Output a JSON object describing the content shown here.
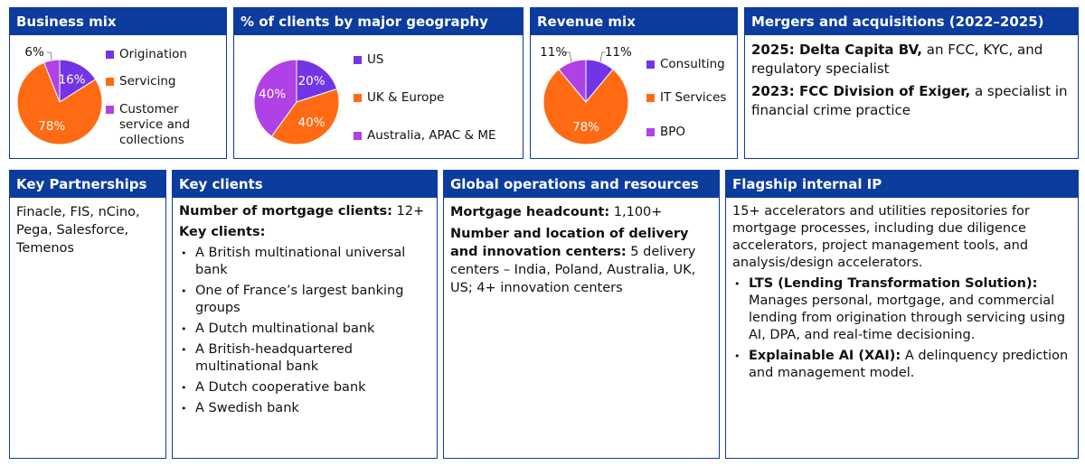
{
  "chart_data": [
    {
      "type": "pie",
      "title": "Business mix",
      "categories": [
        "Origination",
        "Servicing",
        "Customer service and collections"
      ],
      "values": [
        16,
        78,
        6
      ],
      "value_labels": [
        "16%",
        "78%",
        "6%"
      ],
      "colors": [
        "#7235e6",
        "#ff6a13",
        "#b041e6"
      ]
    },
    {
      "type": "pie",
      "title": "% of clients by major geography",
      "categories": [
        "US",
        "UK & Europe",
        "Australia, APAC & ME"
      ],
      "values": [
        20,
        40,
        40
      ],
      "value_labels": [
        "20%",
        "40%",
        "40%"
      ],
      "colors": [
        "#7235e6",
        "#ff6a13",
        "#b041e6"
      ]
    },
    {
      "type": "pie",
      "title": "Revenue mix",
      "categories": [
        "Consulting",
        "IT Services",
        "BPO"
      ],
      "values": [
        11,
        78,
        11
      ],
      "value_labels": [
        "11%",
        "78%",
        "11%"
      ],
      "colors": [
        "#7235e6",
        "#ff6a13",
        "#b041e6"
      ]
    }
  ],
  "mna": {
    "title": "Mergers and acquisitions (2022–2025)",
    "items": [
      {
        "bold": "2025: Delta Capita BV,",
        "text": "an FCC, KYC, and regulatory specialist"
      },
      {
        "bold": "2023: FCC Division of Exiger,",
        "text": "a specialist in financial crime practice"
      }
    ]
  },
  "partnerships": {
    "title": "Key Partnerships",
    "text": "Finacle, FIS, nCino, Pega, Salesforce, Temenos"
  },
  "clients": {
    "title": "Key clients",
    "count_label": "Number of mortgage clients:",
    "count": "12+",
    "list_label": "Key clients:",
    "list": [
      "A British multinational universal bank",
      "One of France’s largest banking groups",
      "A Dutch multinational bank",
      "A British-headquartered multinational bank",
      "A Dutch cooperative bank",
      "A Swedish bank"
    ]
  },
  "operations": {
    "title": "Global operations and resources",
    "headcount_label": "Mortgage headcount:",
    "headcount": "1,100+",
    "centers_label": "Number and location of delivery and innovation centers:",
    "centers": "5 delivery centers – India, Poland, Australia, UK, US; 4+ innovation centers"
  },
  "ip": {
    "title": "Flagship internal IP",
    "intro": "15+ accelerators and utilities repositories for mortgage processes, including due diligence accelerators, project management tools, and analysis/design accelerators.",
    "items": [
      {
        "bold": "LTS (Lending Transformation Solution):",
        "text": "Manages personal, mortgage, and commercial lending from origination through servicing using AI, DPA, and real-time decisioning."
      },
      {
        "bold": "Explainable AI (XAI):",
        "text": "A delinquency prediction and management model."
      }
    ]
  }
}
